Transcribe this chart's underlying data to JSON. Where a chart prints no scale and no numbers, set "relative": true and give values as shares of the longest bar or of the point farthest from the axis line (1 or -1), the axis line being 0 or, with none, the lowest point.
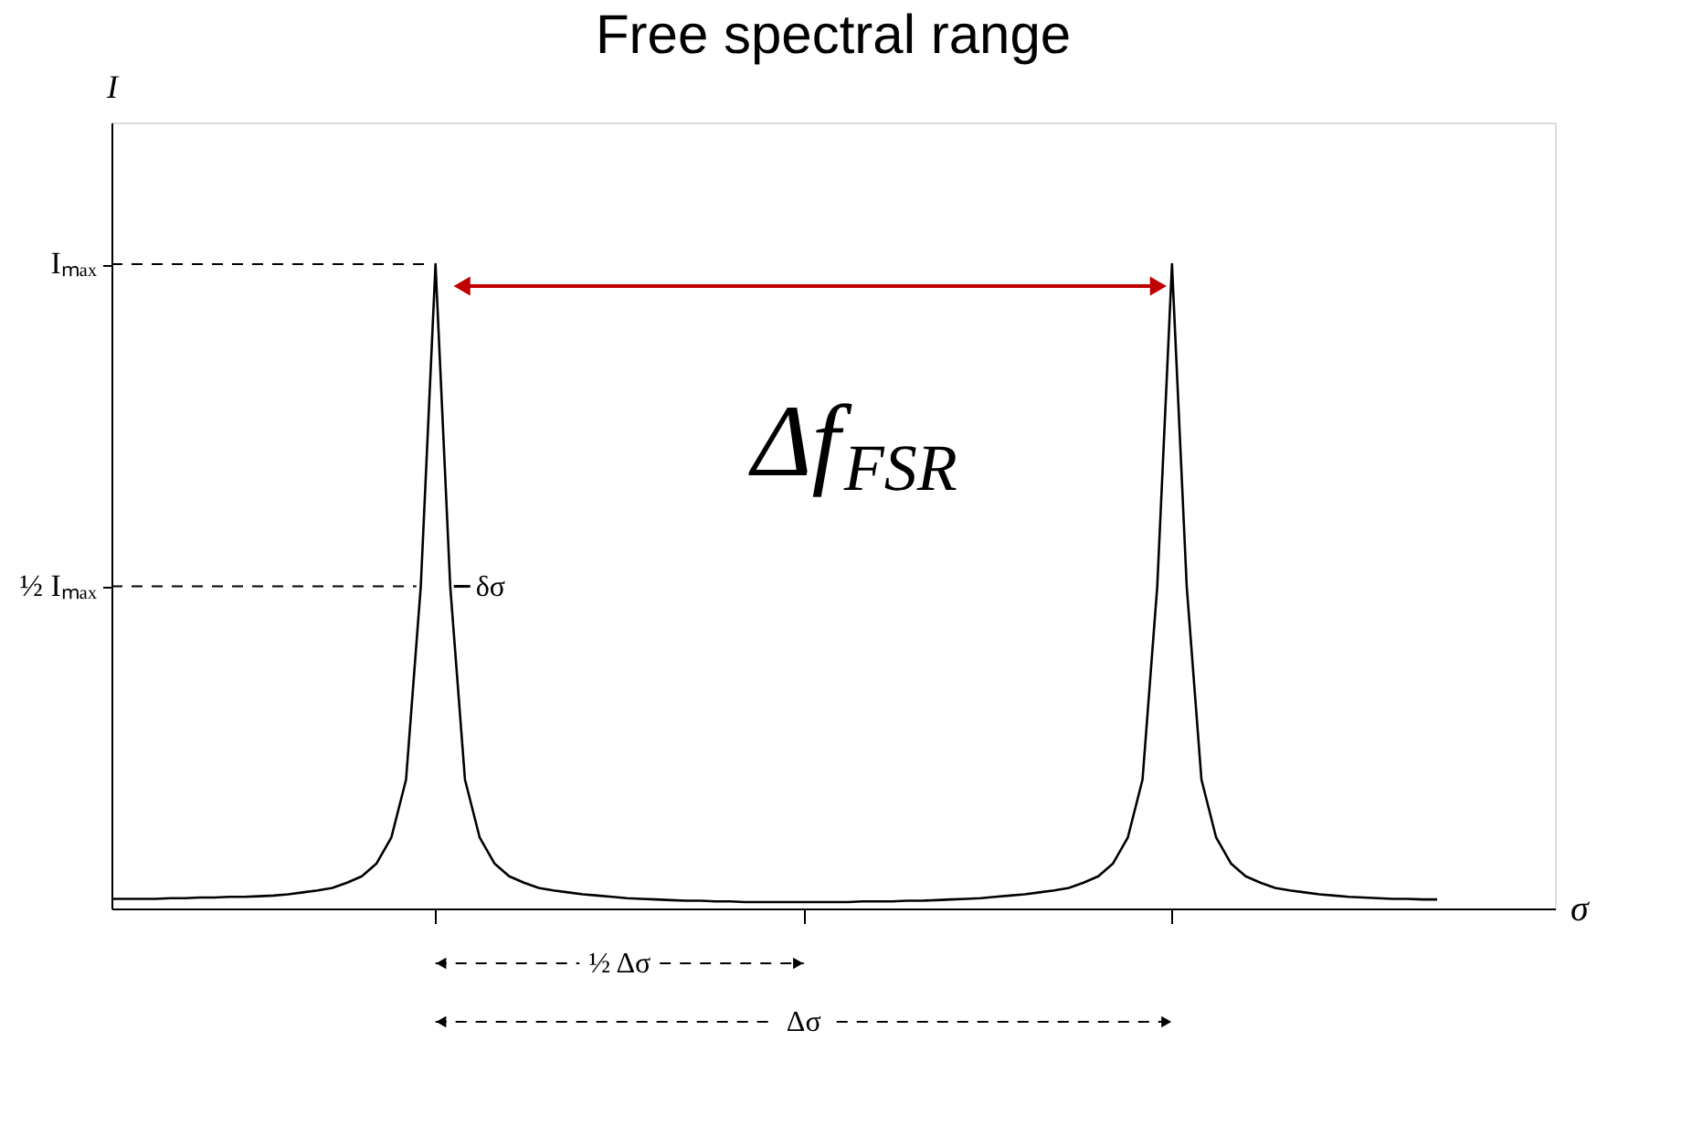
{
  "chart_data": {
    "type": "line",
    "title": "Free spectral range",
    "xlabel": "σ",
    "ylabel": "I",
    "relative": true,
    "categories": [
      null,
      null,
      null,
      null,
      null,
      null,
      null,
      null,
      null,
      null,
      null,
      null,
      null,
      null,
      null,
      null,
      null,
      null,
      null,
      null,
      null,
      null,
      null,
      null,
      null,
      null,
      null,
      null,
      null,
      null,
      null,
      null,
      null,
      null,
      null,
      null,
      null,
      null,
      null,
      null,
      null,
      null,
      null,
      null,
      null,
      null,
      null,
      null,
      null,
      null,
      null,
      null,
      null,
      null,
      null,
      null,
      null,
      null,
      null,
      null,
      null,
      null,
      null,
      null,
      null,
      null,
      null,
      null,
      null,
      null,
      null,
      null,
      null,
      null,
      null,
      null,
      null,
      null,
      null,
      null,
      null,
      null,
      null,
      null,
      null,
      null,
      null,
      null,
      null,
      null,
      null
    ],
    "series": [
      {
        "color": "#000000",
        "values": [
          0.015,
          0.015,
          0.015,
          0.015,
          0.016,
          0.016,
          0.017,
          0.017,
          0.018,
          0.018,
          0.019,
          0.02,
          0.022,
          0.025,
          0.028,
          0.032,
          0.04,
          0.05,
          0.07,
          0.11,
          0.2,
          0.5,
          1.0,
          0.5,
          0.2,
          0.11,
          0.07,
          0.05,
          0.04,
          0.032,
          0.028,
          0.025,
          0.022,
          0.02,
          0.018,
          0.016,
          0.015,
          0.014,
          0.013,
          0.012,
          0.012,
          0.011,
          0.011,
          0.01,
          0.01,
          0.01,
          0.01,
          0.01,
          0.01,
          0.01,
          0.01,
          0.011,
          0.011,
          0.011,
          0.012,
          0.012,
          0.013,
          0.014,
          0.015,
          0.016,
          0.018,
          0.02,
          0.022,
          0.025,
          0.028,
          0.032,
          0.04,
          0.05,
          0.07,
          0.11,
          0.2,
          0.5,
          1.0,
          0.5,
          0.2,
          0.11,
          0.07,
          0.05,
          0.04,
          0.032,
          0.028,
          0.025,
          0.022,
          0.02,
          0.018,
          0.017,
          0.016,
          0.015,
          0.015,
          0.014,
          0.014
        ]
      }
    ],
    "grid": false,
    "marker": "none",
    "line_style": "solid",
    "annotations": [
      "Iₘₐₓ",
      "½ Iₘₐₓ",
      "Δf$_{FSR}$",
      "δσ",
      "½ Δσ",
      "Δσ"
    ]
  }
}
